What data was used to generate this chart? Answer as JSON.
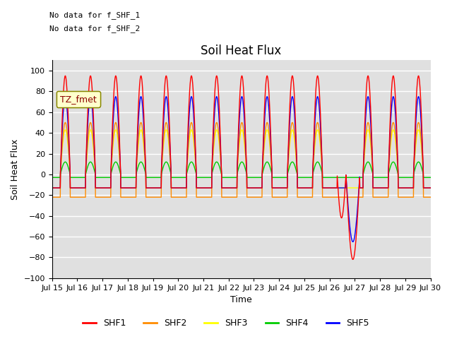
{
  "title": "Soil Heat Flux",
  "xlabel": "Time",
  "ylabel": "Soil Heat Flux",
  "ylim": [
    -100,
    110
  ],
  "yticks": [
    -100,
    -80,
    -60,
    -40,
    -20,
    0,
    20,
    40,
    60,
    80,
    100
  ],
  "colors": {
    "SHF1": "#FF0000",
    "SHF2": "#FF8C00",
    "SHF3": "#FFFF00",
    "SHF4": "#00CC00",
    "SHF5": "#0000FF"
  },
  "legend_labels": [
    "SHF1",
    "SHF2",
    "SHF3",
    "SHF4",
    "SHF5"
  ],
  "annotation_text1": "No data for f_SHF_1",
  "annotation_text2": "No data for f_SHF_2",
  "legend_box_text": "TZ_fmet",
  "background_color": "#E0E0E0",
  "xtick_labels": [
    "Jul 15",
    "Jul 16",
    "Jul 17",
    "Jul 18",
    "Jul 19",
    "Jul 20",
    "Jul 21",
    "Jul 22",
    "Jul 23",
    "Jul 24",
    "Jul 25",
    "Jul 26",
    "Jul 27",
    "Jul 28",
    "Jul 29",
    "Jul 30"
  ],
  "n_days": 15,
  "pts_per_day": 144
}
